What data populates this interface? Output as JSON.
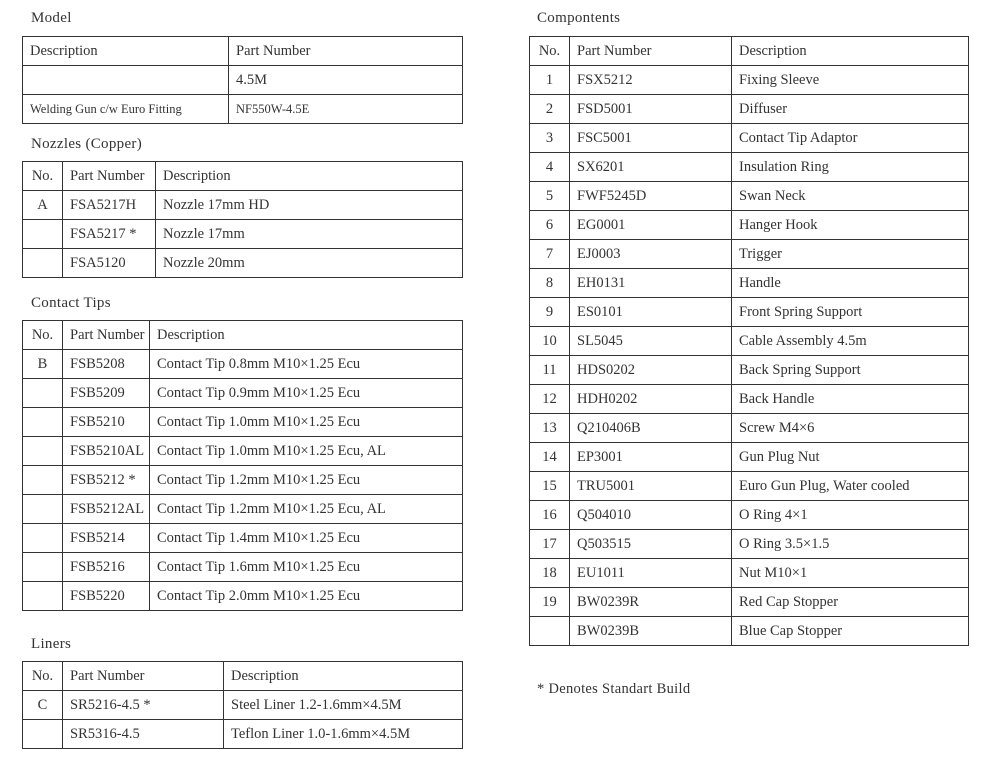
{
  "model": {
    "title": "Model",
    "headers": [
      "Description",
      "Part Number"
    ],
    "rows": [
      [
        "",
        "4.5M"
      ],
      [
        "Welding Gun c/w Euro Fitting",
        "NF550W-4.5E"
      ]
    ]
  },
  "nozzles": {
    "title": "Nozzles (Copper)",
    "headers": [
      "No.",
      "Part Number",
      "Description"
    ],
    "rows": [
      [
        "A",
        "FSA5217H",
        "Nozzle 17mm HD"
      ],
      [
        "",
        "FSA5217 *",
        "Nozzle 17mm"
      ],
      [
        "",
        "FSA5120",
        "Nozzle 20mm"
      ]
    ]
  },
  "contact_tips": {
    "title": "Contact Tips",
    "headers": [
      "No.",
      "Part Number",
      "Description"
    ],
    "rows": [
      [
        "B",
        "FSB5208",
        "Contact Tip 0.8mm M10×1.25 Ecu"
      ],
      [
        "",
        "FSB5209",
        "Contact Tip 0.9mm M10×1.25 Ecu"
      ],
      [
        "",
        "FSB5210",
        "Contact Tip 1.0mm M10×1.25 Ecu"
      ],
      [
        "",
        "FSB5210AL",
        "Contact Tip 1.0mm M10×1.25 Ecu, AL"
      ],
      [
        "",
        "FSB5212 *",
        "Contact Tip 1.2mm M10×1.25 Ecu"
      ],
      [
        "",
        "FSB5212AL",
        "Contact Tip 1.2mm M10×1.25 Ecu, AL"
      ],
      [
        "",
        "FSB5214",
        "Contact Tip 1.4mm M10×1.25 Ecu"
      ],
      [
        "",
        "FSB5216",
        "Contact Tip 1.6mm M10×1.25 Ecu"
      ],
      [
        "",
        "FSB5220",
        "Contact Tip 2.0mm M10×1.25 Ecu"
      ]
    ]
  },
  "liners": {
    "title": "Liners",
    "headers": [
      "No.",
      "Part Number",
      "Description"
    ],
    "rows": [
      [
        "C",
        "SR5216-4.5 *",
        "Steel Liner 1.2-1.6mm×4.5M"
      ],
      [
        "",
        "SR5316-4.5",
        "Teflon Liner 1.0-1.6mm×4.5M"
      ]
    ]
  },
  "components": {
    "title": "Compontents",
    "headers": [
      "No.",
      "Part Number",
      "Description"
    ],
    "rows": [
      [
        "1",
        "FSX5212",
        "Fixing Sleeve"
      ],
      [
        "2",
        "FSD5001",
        "Diffuser"
      ],
      [
        "3",
        "FSC5001",
        "Contact Tip Adaptor"
      ],
      [
        "4",
        "SX6201",
        "Insulation Ring"
      ],
      [
        "5",
        "FWF5245D",
        "Swan Neck"
      ],
      [
        "6",
        "EG0001",
        "Hanger Hook"
      ],
      [
        "7",
        "EJ0003",
        "Trigger"
      ],
      [
        "8",
        "EH0131",
        "Handle"
      ],
      [
        "9",
        "ES0101",
        "Front Spring Support"
      ],
      [
        "10",
        "SL5045",
        "Cable Assembly 4.5m"
      ],
      [
        "11",
        "HDS0202",
        "Back Spring Support"
      ],
      [
        "12",
        "HDH0202",
        "Back Handle"
      ],
      [
        "13",
        "Q210406B",
        "Screw M4×6"
      ],
      [
        "14",
        "EP3001",
        "Gun Plug Nut"
      ],
      [
        "15",
        "TRU5001",
        "Euro Gun Plug, Water cooled"
      ],
      [
        "16",
        "Q504010",
        "O Ring 4×1"
      ],
      [
        "17",
        "Q503515",
        "O Ring 3.5×1.5"
      ],
      [
        "18",
        "EU1011",
        "Nut M10×1"
      ],
      [
        "19",
        "BW0239R",
        "Red Cap Stopper"
      ],
      [
        "",
        "BW0239B",
        "Blue Cap Stopper"
      ]
    ]
  },
  "footnote": "* Denotes Standart Build"
}
